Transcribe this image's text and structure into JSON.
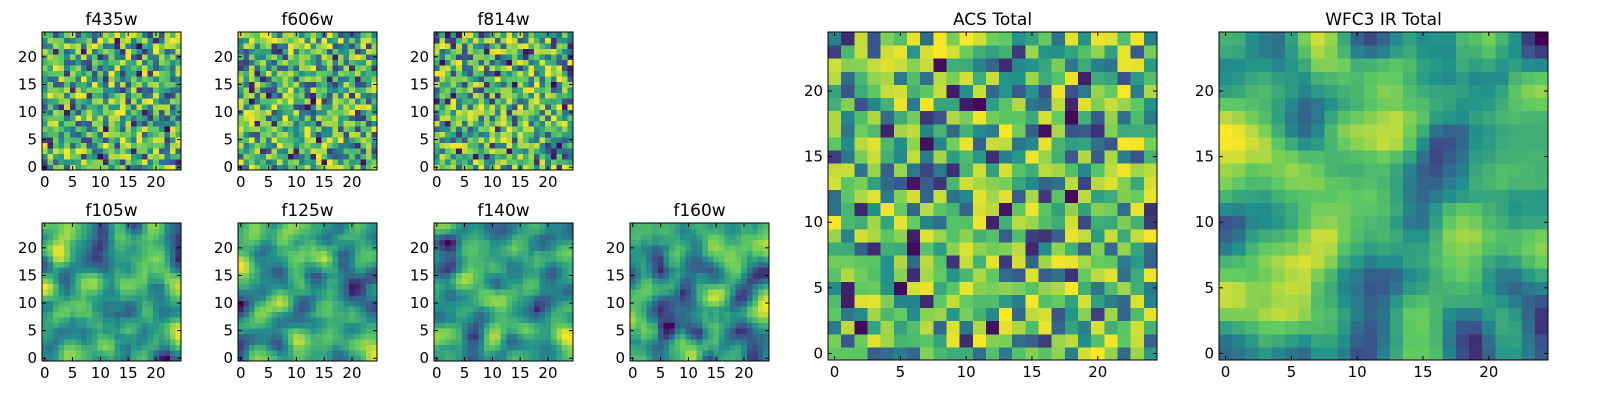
{
  "chart_data": [
    {
      "type": "heatmap",
      "title": "f435w",
      "xlim": [
        -0.5,
        24.5
      ],
      "ylim": [
        -0.5,
        24.5
      ],
      "x_ticks": [
        0,
        5,
        10,
        15,
        20
      ],
      "y_ticks": [
        0,
        5,
        10,
        15,
        20
      ],
      "grid_size": [
        25,
        25
      ],
      "colormap": "viridis",
      "texture": "pixel noise"
    },
    {
      "type": "heatmap",
      "title": "f606w",
      "xlim": [
        -0.5,
        24.5
      ],
      "ylim": [
        -0.5,
        24.5
      ],
      "x_ticks": [
        0,
        5,
        10,
        15,
        20
      ],
      "y_ticks": [
        0,
        5,
        10,
        15,
        20
      ],
      "grid_size": [
        25,
        25
      ],
      "colormap": "viridis",
      "texture": "pixel noise"
    },
    {
      "type": "heatmap",
      "title": "f814w",
      "xlim": [
        -0.5,
        24.5
      ],
      "ylim": [
        -0.5,
        24.5
      ],
      "x_ticks": [
        0,
        5,
        10,
        15,
        20
      ],
      "y_ticks": [
        0,
        5,
        10,
        15,
        20
      ],
      "grid_size": [
        25,
        25
      ],
      "colormap": "viridis",
      "texture": "pixel noise"
    },
    {
      "type": "heatmap",
      "title": "f105w",
      "xlim": [
        -0.5,
        24.5
      ],
      "ylim": [
        -0.5,
        24.5
      ],
      "x_ticks": [
        0,
        5,
        10,
        15,
        20
      ],
      "y_ticks": [
        0,
        5,
        10,
        15,
        20
      ],
      "grid_size": [
        25,
        25
      ],
      "colormap": "viridis",
      "texture": "smooth blobs"
    },
    {
      "type": "heatmap",
      "title": "f125w",
      "xlim": [
        -0.5,
        24.5
      ],
      "ylim": [
        -0.5,
        24.5
      ],
      "x_ticks": [
        0,
        5,
        10,
        15,
        20
      ],
      "y_ticks": [
        0,
        5,
        10,
        15,
        20
      ],
      "grid_size": [
        25,
        25
      ],
      "colormap": "viridis",
      "texture": "smooth blobs"
    },
    {
      "type": "heatmap",
      "title": "f140w",
      "xlim": [
        -0.5,
        24.5
      ],
      "ylim": [
        -0.5,
        24.5
      ],
      "x_ticks": [
        0,
        5,
        10,
        15,
        20
      ],
      "y_ticks": [
        0,
        5,
        10,
        15,
        20
      ],
      "grid_size": [
        25,
        25
      ],
      "colormap": "viridis",
      "texture": "smooth blobs"
    },
    {
      "type": "heatmap",
      "title": "f160w",
      "xlim": [
        -0.5,
        24.5
      ],
      "ylim": [
        -0.5,
        24.5
      ],
      "x_ticks": [
        0,
        5,
        10,
        15,
        20
      ],
      "y_ticks": [
        0,
        5,
        10,
        15,
        20
      ],
      "grid_size": [
        25,
        25
      ],
      "colormap": "viridis",
      "texture": "smooth blobs"
    },
    {
      "type": "heatmap",
      "title": "ACS Total",
      "xlim": [
        -0.5,
        24.5
      ],
      "ylim": [
        -0.5,
        24.5
      ],
      "x_ticks": [
        0,
        5,
        10,
        15,
        20
      ],
      "y_ticks": [
        0,
        5,
        10,
        15,
        20
      ],
      "grid_size": [
        25,
        25
      ],
      "colormap": "viridis",
      "texture": "pixel noise"
    },
    {
      "type": "heatmap",
      "title": "WFC3 IR Total",
      "xlim": [
        -0.5,
        24.5
      ],
      "ylim": [
        -0.5,
        24.5
      ],
      "x_ticks": [
        0,
        5,
        10,
        15,
        20
      ],
      "y_ticks": [
        0,
        5,
        10,
        15,
        20
      ],
      "grid_size": [
        25,
        25
      ],
      "colormap": "viridis",
      "texture": "smooth blobs"
    }
  ],
  "colors": {
    "viridis_stops": [
      "#440154",
      "#3b528b",
      "#21918c",
      "#5ec962",
      "#fde725"
    ],
    "axes_frame": "#000000",
    "background": "#ffffff"
  }
}
